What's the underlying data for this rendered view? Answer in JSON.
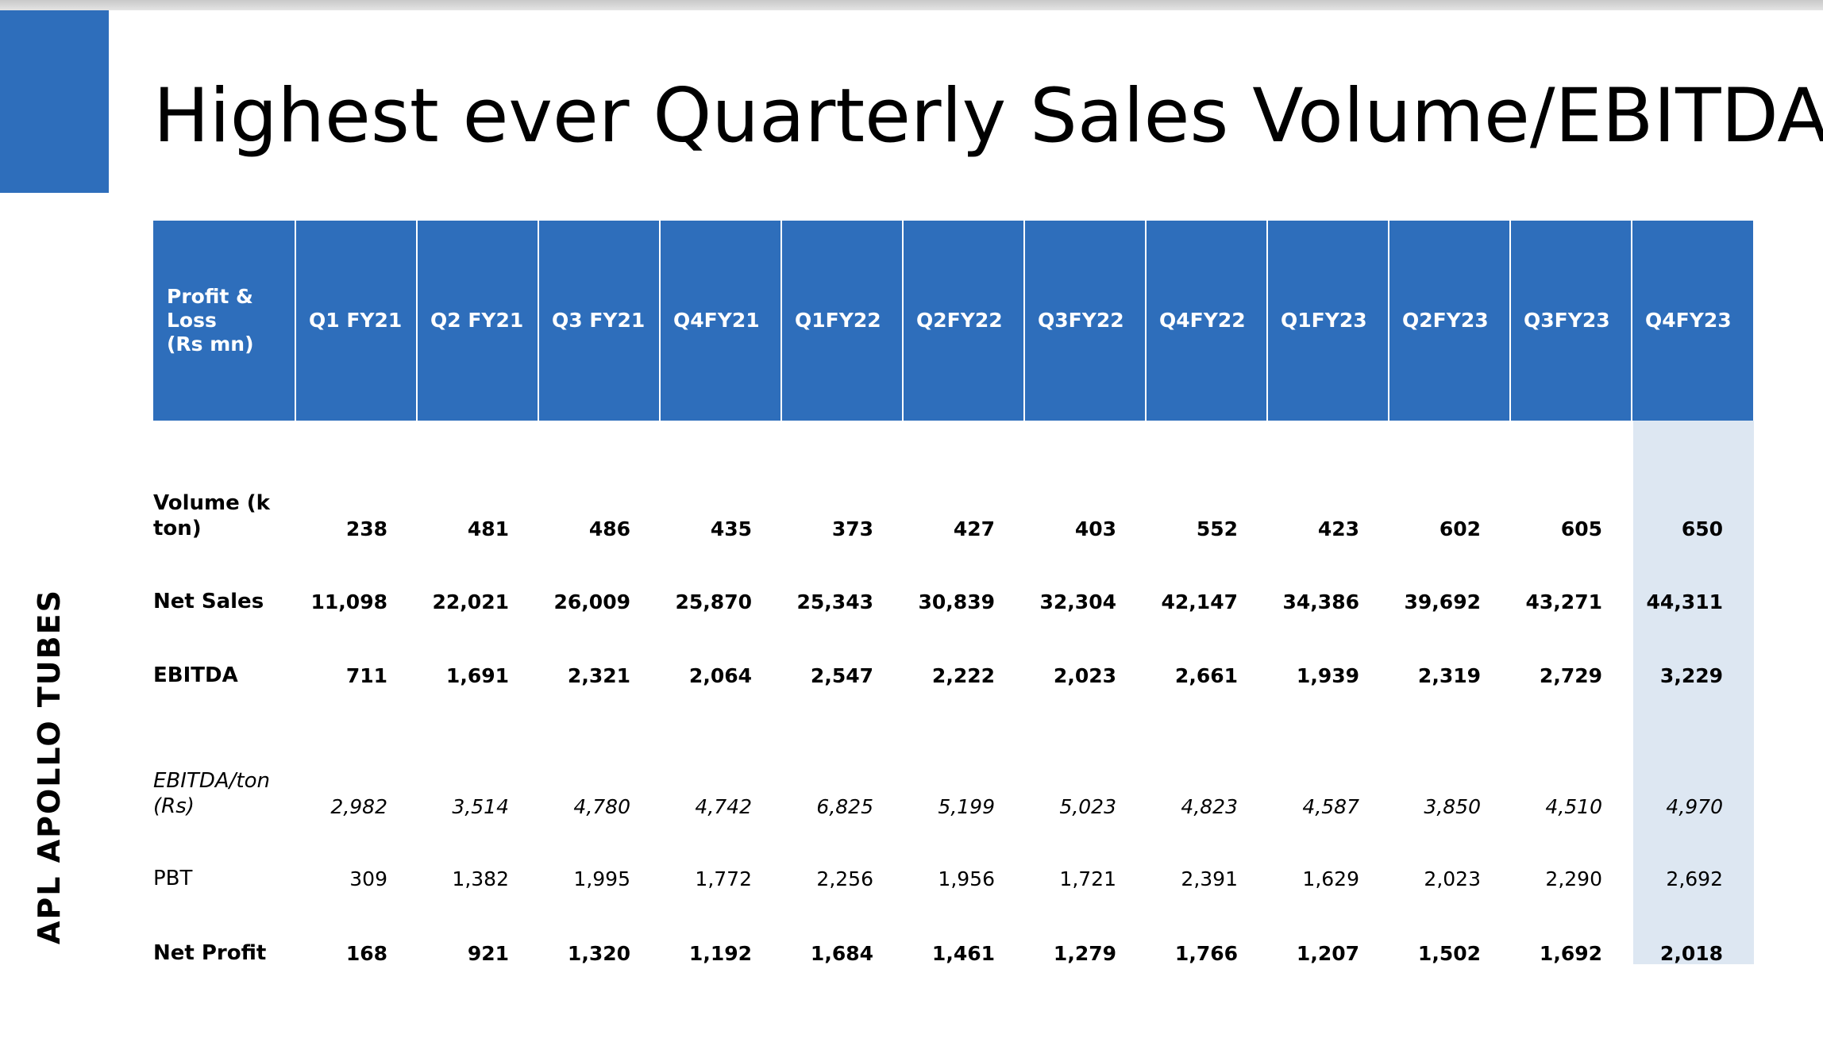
{
  "slide": {
    "title": "Highest ever Quarterly Sales Volume/EBITDA",
    "brand": "APL APOLLO TUBES",
    "accent_color": "#2e6ebb",
    "highlight_color": "#dde7f2"
  },
  "table": {
    "header_label": "Profit & Loss\n(Rs mn)",
    "columns": [
      "Q1 FY21",
      "Q2 FY21",
      "Q3 FY21",
      "Q4FY21",
      "Q1FY22",
      "Q2FY22",
      "Q3FY22",
      "Q4FY22",
      "Q1FY23",
      "Q2FY23",
      "Q3FY23",
      "Q4FY23"
    ],
    "rows": [
      {
        "label": "Volume (k\nton)",
        "values": [
          "238",
          "481",
          "486",
          "435",
          "373",
          "427",
          "403",
          "552",
          "423",
          "602",
          "605",
          "650"
        ]
      },
      {
        "label": "Net Sales",
        "values": [
          "11,098",
          "22,021",
          "26,009",
          "25,870",
          "25,343",
          "30,839",
          "32,304",
          "42,147",
          "34,386",
          "39,692",
          "43,271",
          "44,311"
        ]
      },
      {
        "label": "EBITDA",
        "values": [
          "711",
          "1,691",
          "2,321",
          "2,064",
          "2,547",
          "2,222",
          "2,023",
          "2,661",
          "1,939",
          "2,319",
          "2,729",
          "3,229"
        ]
      },
      {
        "label": "EBITDA/ton\n(Rs)",
        "values": [
          "2,982",
          "3,514",
          "4,780",
          "4,742",
          "6,825",
          "5,199",
          "5,023",
          "4,823",
          "4,587",
          "3,850",
          "4,510",
          "4,970"
        ]
      },
      {
        "label": "PBT",
        "values": [
          "309",
          "1,382",
          "1,995",
          "1,772",
          "2,256",
          "1,956",
          "1,721",
          "2,391",
          "1,629",
          "2,023",
          "2,290",
          "2,692"
        ]
      },
      {
        "label": "Net Profit",
        "values": [
          "168",
          "921",
          "1,320",
          "1,192",
          "1,684",
          "1,461",
          "1,279",
          "1,766",
          "1,207",
          "1,502",
          "1,692",
          "2,018"
        ]
      }
    ]
  }
}
